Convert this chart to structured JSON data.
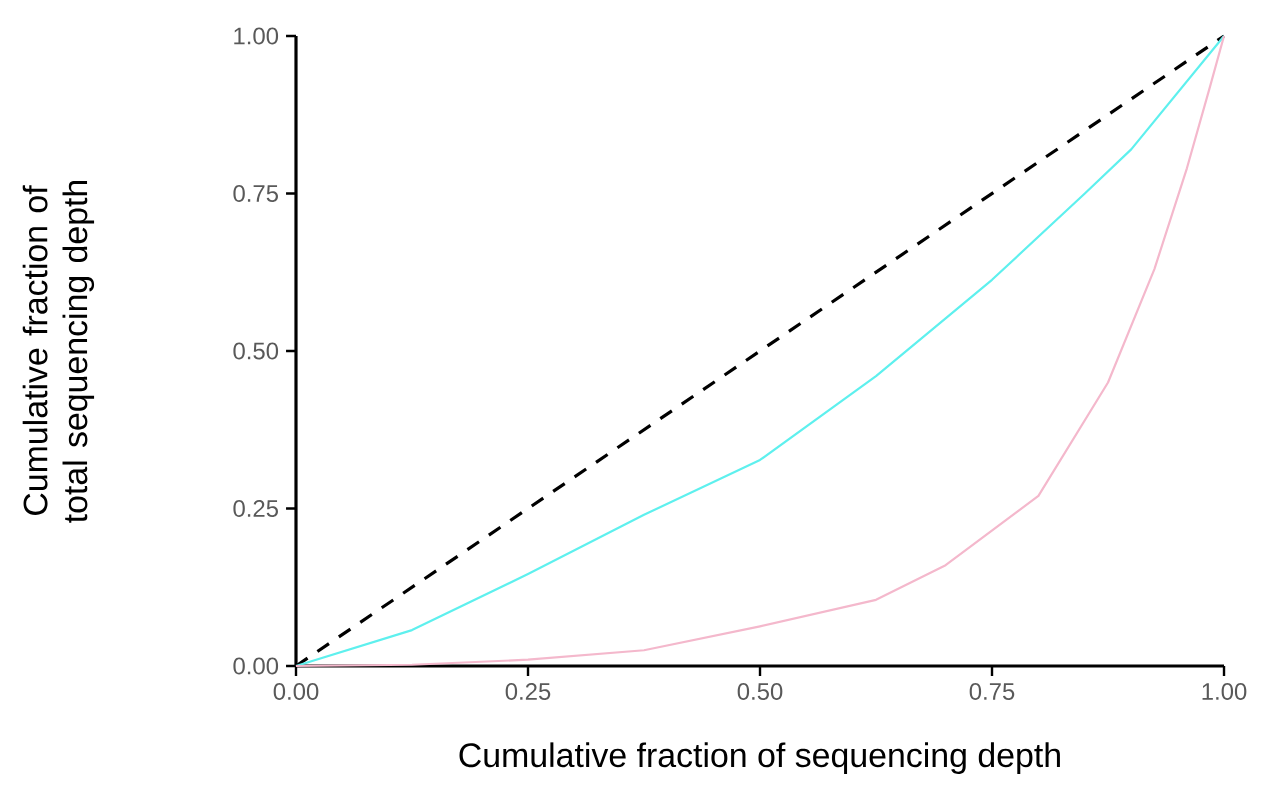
{
  "chart_data": {
    "type": "line",
    "xlabel": "Cumulative fraction of sequencing depth",
    "ylabel": "Cumulative fraction of total sequencing depth",
    "xlim": [
      0,
      1
    ],
    "ylim": [
      0,
      1
    ],
    "xticks": [
      {
        "value": 0,
        "label": "0.00"
      },
      {
        "value": 0.25,
        "label": "0.25"
      },
      {
        "value": 0.5,
        "label": "0.50"
      },
      {
        "value": 0.75,
        "label": "0.75"
      },
      {
        "value": 1,
        "label": "1.00"
      }
    ],
    "yticks": [
      {
        "value": 0,
        "label": "0.00"
      },
      {
        "value": 0.25,
        "label": "0.25"
      },
      {
        "value": 0.5,
        "label": "0.50"
      },
      {
        "value": 0.75,
        "label": "0.75"
      },
      {
        "value": 1,
        "label": "1.00"
      }
    ],
    "series": [
      {
        "line_style": "dashed",
        "color": "#000000",
        "x": [
          0,
          1
        ],
        "values": [
          0,
          1
        ]
      },
      {
        "line_style": "solid",
        "color": "#5ef0ee",
        "x": [
          0,
          0.125,
          0.25,
          0.375,
          0.5,
          0.625,
          0.75,
          0.85,
          0.9,
          1
        ],
        "values": [
          0,
          0.057,
          0.146,
          0.24,
          0.327,
          0.46,
          0.613,
          0.75,
          0.82,
          1
        ]
      },
      {
        "line_style": "solid",
        "color": "#f4b8cc",
        "x": [
          0,
          0.125,
          0.25,
          0.375,
          0.5,
          0.625,
          0.7,
          0.8,
          0.875,
          0.925,
          0.96,
          0.985,
          1
        ],
        "values": [
          0,
          0.002,
          0.01,
          0.025,
          0.063,
          0.105,
          0.16,
          0.27,
          0.45,
          0.63,
          0.79,
          0.92,
          1
        ]
      }
    ]
  }
}
